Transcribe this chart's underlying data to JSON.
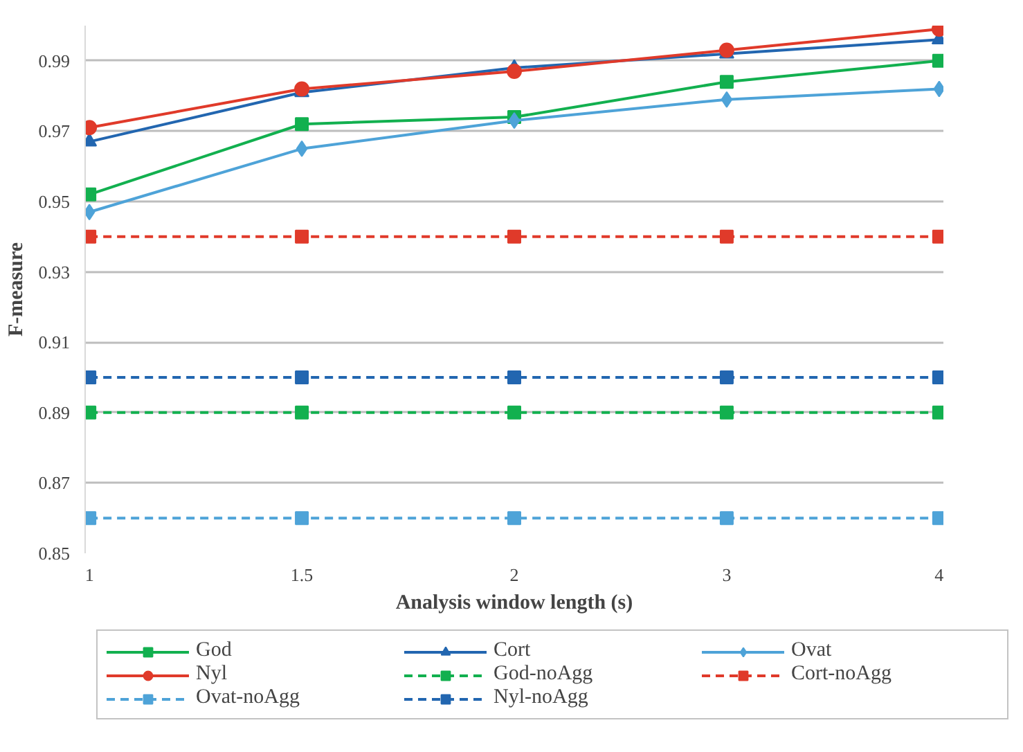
{
  "chart_data": {
    "type": "line",
    "xlabel": "Analysis window length (s)",
    "ylabel": "F-measure",
    "categories": [
      "1",
      "1.5",
      "2",
      "3",
      "4"
    ],
    "ylim": [
      0.85,
      1.0
    ],
    "yticks": [
      0.85,
      0.87,
      0.89,
      0.91,
      0.93,
      0.95,
      0.97,
      0.99
    ],
    "grid": "y",
    "legend": "bottom",
    "series": [
      {
        "name": "God",
        "color": "#12b04f",
        "marker": "square",
        "line_style": "solid",
        "values": [
          0.952,
          0.972,
          0.974,
          0.984,
          0.99
        ]
      },
      {
        "name": "Cort",
        "color": "#2266b0",
        "marker": "triangle",
        "line_style": "solid",
        "values": [
          0.967,
          0.981,
          0.988,
          0.992,
          0.996
        ]
      },
      {
        "name": "Ovat",
        "color": "#4ea3d8",
        "marker": "diamond",
        "line_style": "solid",
        "values": [
          0.947,
          0.965,
          0.973,
          0.979,
          0.982
        ]
      },
      {
        "name": "Nyl",
        "color": "#e03a2a",
        "marker": "circle",
        "line_style": "solid",
        "values": [
          0.971,
          0.982,
          0.987,
          0.993,
          0.999
        ]
      },
      {
        "name": "God-noAgg",
        "color": "#12b04f",
        "marker": "square",
        "line_style": "dashed",
        "values": [
          0.89,
          0.89,
          0.89,
          0.89,
          0.89
        ]
      },
      {
        "name": "Cort-noAgg",
        "color": "#e03a2a",
        "marker": "square",
        "line_style": "dashed",
        "values": [
          0.94,
          0.94,
          0.94,
          0.94,
          0.94
        ]
      },
      {
        "name": "Ovat-noAgg",
        "color": "#4ea3d8",
        "marker": "square",
        "line_style": "dashed",
        "values": [
          0.86,
          0.86,
          0.86,
          0.86,
          0.86
        ]
      },
      {
        "name": "Nyl-noAgg",
        "color": "#2266b0",
        "marker": "square",
        "line_style": "dashed",
        "values": [
          0.9,
          0.9,
          0.9,
          0.9,
          0.9
        ]
      }
    ]
  }
}
